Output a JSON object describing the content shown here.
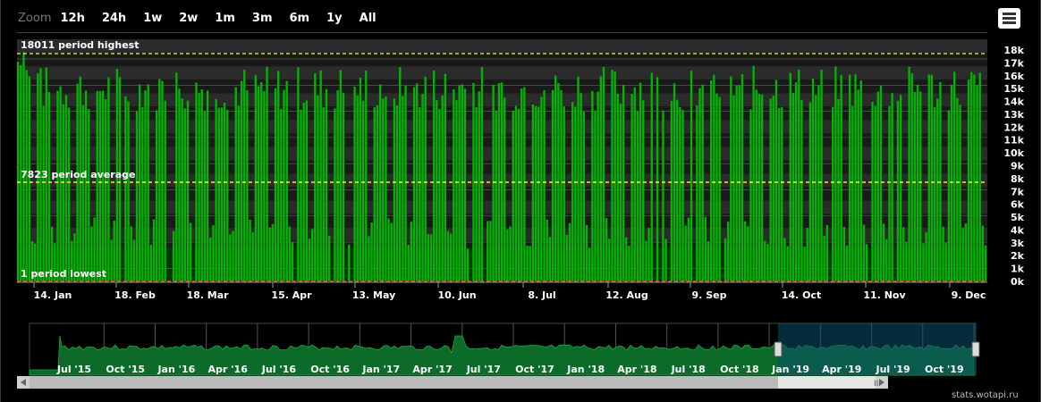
{
  "zoom": {
    "label": "Zoom",
    "buttons": [
      "12h",
      "24h",
      "1w",
      "2w",
      "1m",
      "3m",
      "6m",
      "1y",
      "All"
    ]
  },
  "menu_icon": "hamburger-menu-icon",
  "chart_data": {
    "type": "bar",
    "title": "",
    "xlabel": "",
    "ylabel": "",
    "ylim": [
      0,
      18500
    ],
    "y_ticks": [
      "0k",
      "1k",
      "2k",
      "3k",
      "4k",
      "5k",
      "6k",
      "7k",
      "8k",
      "9k",
      "10k",
      "11k",
      "12k",
      "13k",
      "14k",
      "15k",
      "16k",
      "17k",
      "18k"
    ],
    "x_ticks": [
      "14. Jan",
      "18. Feb",
      "18. Mar",
      "15. Apr",
      "13. May",
      "10. Jun",
      "8. Jul",
      "12. Aug",
      "9. Sep",
      "14. Oct",
      "11. Nov",
      "9. Dec"
    ],
    "x_range": [
      "2019-01-07",
      "2019-12-16"
    ],
    "series": [
      {
        "color": "#00b400",
        "period_daily_pattern": {
          "weekday_peak_range": [
            13000,
            16500
          ],
          "weekend_low_range": [
            2500,
            5000
          ],
          "occasional_zero_dips": true
        }
      }
    ],
    "reference_lines": [
      {
        "label": "18011 period highest",
        "value": 18011,
        "color": "#cddc39"
      },
      {
        "label": "7823 period average",
        "value": 7823,
        "color": "#ffeb3b"
      },
      {
        "label": "1 period lowest",
        "value": 1,
        "color": "#ff3b30"
      }
    ],
    "grid": true,
    "navigator": {
      "x_ticks": [
        "Jul '15",
        "Oct '15",
        "Jan '16",
        "Apr '16",
        "Jul '16",
        "Oct '16",
        "Jan '17",
        "Apr '17",
        "Jul '17",
        "Oct '17",
        "Jan '18",
        "Apr '18",
        "Jul '18",
        "Oct '18",
        "Jan '19",
        "Apr '19",
        "Jul '19",
        "Oct '19"
      ],
      "selected_range": [
        "Jan '19",
        "Dec '19"
      ]
    }
  },
  "scrollbar_grip": "III",
  "credits": "stats.wotapi.ru",
  "colors": {
    "bar": "#00b400",
    "plot_bg": "#003600",
    "band": "#2a2a2a",
    "nav_fill": "#0d6b2a",
    "nav_select": "#0a3a45"
  }
}
